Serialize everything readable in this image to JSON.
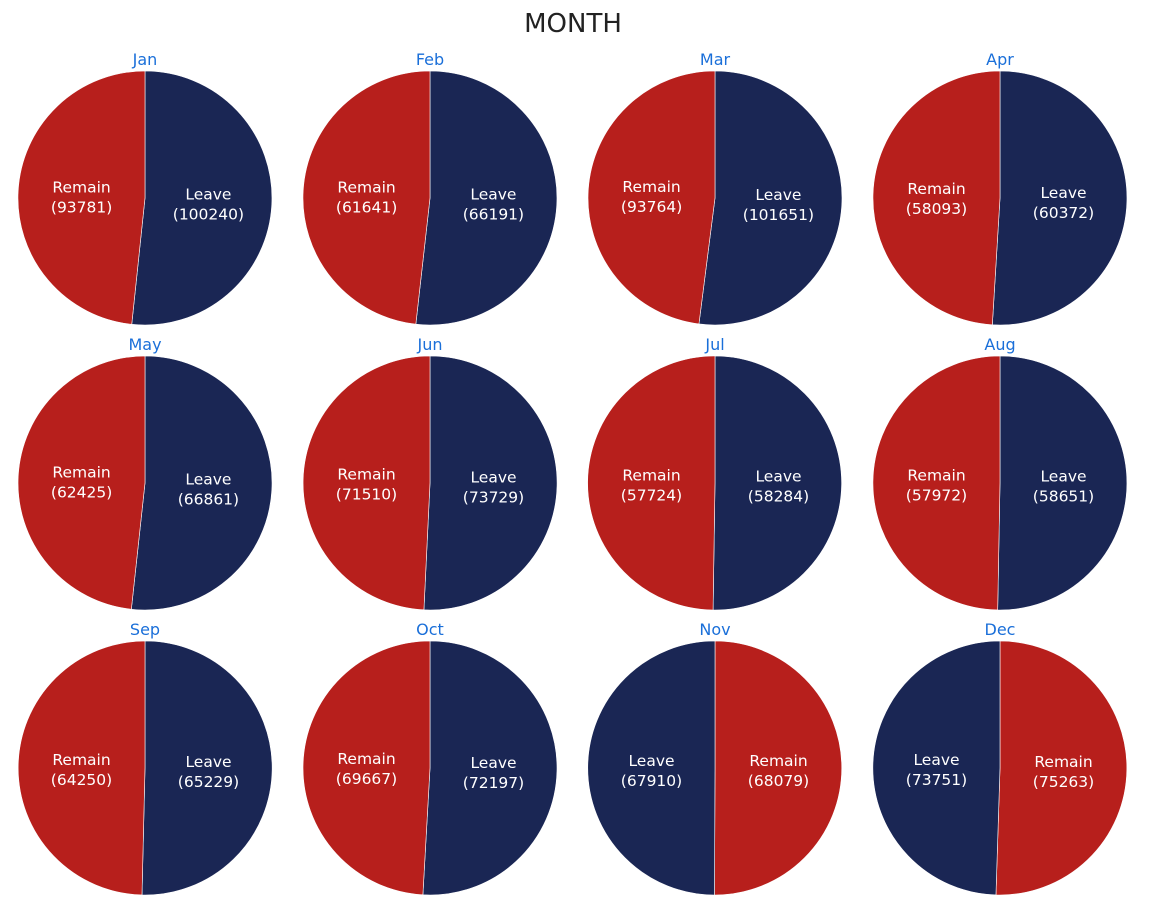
{
  "chart_data": {
    "type": "pie",
    "title": "MONTH",
    "colors": {
      "Leave": "#1a2654",
      "Remain": "#b71f1c",
      "month_title": "#1a6fd9"
    },
    "charts": [
      {
        "title": "Jan",
        "slices": [
          {
            "label": "Leave",
            "value": 100240
          },
          {
            "label": "Remain",
            "value": 93781
          }
        ]
      },
      {
        "title": "Feb",
        "slices": [
          {
            "label": "Leave",
            "value": 66191
          },
          {
            "label": "Remain",
            "value": 61641
          }
        ]
      },
      {
        "title": "Mar",
        "slices": [
          {
            "label": "Leave",
            "value": 101651
          },
          {
            "label": "Remain",
            "value": 93764
          }
        ]
      },
      {
        "title": "Apr",
        "slices": [
          {
            "label": "Leave",
            "value": 60372
          },
          {
            "label": "Remain",
            "value": 58093
          }
        ]
      },
      {
        "title": "May",
        "slices": [
          {
            "label": "Leave",
            "value": 66861
          },
          {
            "label": "Remain",
            "value": 62425
          }
        ]
      },
      {
        "title": "Jun",
        "slices": [
          {
            "label": "Leave",
            "value": 73729
          },
          {
            "label": "Remain",
            "value": 71510
          }
        ]
      },
      {
        "title": "Jul",
        "slices": [
          {
            "label": "Leave",
            "value": 58284
          },
          {
            "label": "Remain",
            "value": 57724
          }
        ]
      },
      {
        "title": "Aug",
        "slices": [
          {
            "label": "Leave",
            "value": 58651
          },
          {
            "label": "Remain",
            "value": 57972
          }
        ]
      },
      {
        "title": "Sep",
        "slices": [
          {
            "label": "Leave",
            "value": 65229
          },
          {
            "label": "Remain",
            "value": 64250
          }
        ]
      },
      {
        "title": "Oct",
        "slices": [
          {
            "label": "Leave",
            "value": 72197
          },
          {
            "label": "Remain",
            "value": 69667
          }
        ]
      },
      {
        "title": "Nov",
        "slices": [
          {
            "label": "Remain",
            "value": 68079
          },
          {
            "label": "Leave",
            "value": 67910
          }
        ]
      },
      {
        "title": "Dec",
        "slices": [
          {
            "label": "Remain",
            "value": 75263
          },
          {
            "label": "Leave",
            "value": 73751
          }
        ]
      }
    ]
  }
}
